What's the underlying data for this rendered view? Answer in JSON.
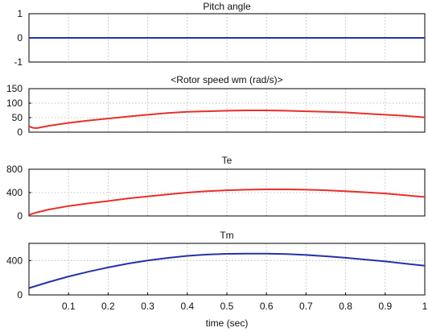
{
  "chart_data": [
    {
      "type": "line",
      "title": "Pitch angle",
      "xlim": [
        0,
        1
      ],
      "ylim": [
        -1,
        1
      ],
      "yticks": [
        -1,
        0,
        1
      ],
      "grid": true,
      "series": [
        {
          "color": "#2632a8",
          "x": [
            0,
            0.1,
            0.2,
            0.3,
            0.4,
            0.5,
            0.6,
            0.7,
            0.8,
            0.9,
            1.0
          ],
          "y": [
            0,
            0,
            0,
            0,
            0,
            0,
            0,
            0,
            0,
            0,
            0
          ]
        }
      ]
    },
    {
      "type": "line",
      "title": "<Rotor speed wm (rad/s)>",
      "xlim": [
        0,
        1
      ],
      "ylim": [
        0,
        150
      ],
      "yticks": [
        0,
        50,
        100,
        150
      ],
      "grid": true,
      "series": [
        {
          "color": "#e8302a",
          "x": [
            0,
            0.01,
            0.02,
            0.05,
            0.1,
            0.15,
            0.2,
            0.25,
            0.3,
            0.35,
            0.4,
            0.45,
            0.5,
            0.55,
            0.6,
            0.65,
            0.7,
            0.75,
            0.8,
            0.85,
            0.9,
            0.95,
            1.0
          ],
          "y": [
            20,
            15,
            14,
            22,
            32,
            40,
            47,
            54,
            60,
            66,
            70,
            72,
            74,
            75,
            75,
            74,
            72,
            70,
            68,
            64,
            60,
            56,
            51
          ]
        }
      ]
    },
    {
      "type": "line",
      "title": "Te",
      "xlim": [
        0,
        1
      ],
      "ylim": [
        0,
        800
      ],
      "yticks": [
        0,
        400,
        800
      ],
      "grid": true,
      "series": [
        {
          "color": "#e8302a",
          "x": [
            0,
            0.02,
            0.05,
            0.1,
            0.15,
            0.2,
            0.25,
            0.3,
            0.35,
            0.4,
            0.45,
            0.5,
            0.55,
            0.6,
            0.65,
            0.7,
            0.75,
            0.8,
            0.85,
            0.9,
            0.95,
            1.0
          ],
          "y": [
            20,
            60,
            110,
            170,
            215,
            255,
            300,
            335,
            370,
            400,
            425,
            440,
            450,
            455,
            455,
            450,
            440,
            425,
            405,
            385,
            355,
            325
          ]
        }
      ]
    },
    {
      "type": "line",
      "title": "Tm",
      "xlim": [
        0,
        1
      ],
      "ylim": [
        0,
        600
      ],
      "yticks": [
        0,
        400
      ],
      "grid": true,
      "xlabel": "time (sec)",
      "xticks": [
        0.1,
        0.2,
        0.3,
        0.4,
        0.5,
        0.6,
        0.7,
        0.8,
        0.9,
        1
      ],
      "xticklabels": [
        "0.1",
        "0.2",
        "0.3",
        "0.4",
        "0.5",
        "0.6",
        "0.7",
        "0.8",
        "0.9",
        "1"
      ],
      "series": [
        {
          "color": "#2632a8",
          "x": [
            0,
            0.05,
            0.1,
            0.15,
            0.2,
            0.25,
            0.3,
            0.35,
            0.4,
            0.45,
            0.5,
            0.55,
            0.6,
            0.65,
            0.7,
            0.75,
            0.8,
            0.85,
            0.9,
            0.95,
            1.0
          ],
          "y": [
            80,
            150,
            215,
            270,
            320,
            365,
            400,
            430,
            455,
            470,
            478,
            480,
            480,
            475,
            465,
            450,
            432,
            412,
            390,
            365,
            340
          ]
        }
      ]
    }
  ]
}
